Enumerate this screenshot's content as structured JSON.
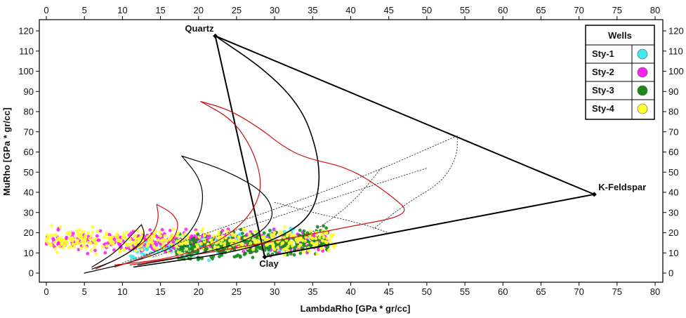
{
  "chart_data": {
    "type": "scatter",
    "title": "",
    "xlabel": "LambdaRho [GPa * gr/cc]",
    "ylabel": "MuRho [GPa * gr/cc]",
    "xlim": [
      0,
      80
    ],
    "ylim": [
      -3,
      125
    ],
    "xticks": [
      0,
      5,
      10,
      15,
      20,
      25,
      30,
      35,
      40,
      45,
      50,
      55,
      60,
      65,
      70,
      75,
      80
    ],
    "yticks": [
      0,
      10,
      20,
      30,
      40,
      50,
      60,
      70,
      80,
      90,
      100,
      110,
      120
    ],
    "top_axis": true,
    "right_axis": true,
    "grid": false,
    "legend": {
      "title": "Wells",
      "placement": "top-right",
      "entries": [
        {
          "name": "Sty-1",
          "color": "#40e8f0"
        },
        {
          "name": "Sty-2",
          "color": "#ff22ee"
        },
        {
          "name": "Sty-3",
          "color": "#1a8a1a"
        },
        {
          "name": "Sty-4",
          "color": "#ffff33"
        }
      ]
    },
    "endmembers": [
      {
        "name": "Quartz",
        "x": 22.2,
        "y": 117.5
      },
      {
        "name": "K-Feldspar",
        "x": 72.0,
        "y": 39.0
      },
      {
        "name": "Clay",
        "x": 28.7,
        "y": 8.0
      }
    ],
    "series": [
      {
        "name": "Sty-1",
        "color": "#40e8f0",
        "cluster": {
          "x_range": [
            11,
            33
          ],
          "y_range": [
            4,
            24
          ]
        }
      },
      {
        "name": "Sty-2",
        "color": "#ff22ee",
        "cluster": {
          "x_range": [
            0,
            37
          ],
          "y_range": [
            5,
            26
          ]
        }
      },
      {
        "name": "Sty-3",
        "color": "#1a8a1a",
        "cluster": {
          "x_range": [
            17,
            37
          ],
          "y_range": [
            2,
            26
          ]
        }
      },
      {
        "name": "Sty-4",
        "color": "#ffff33",
        "cluster": {
          "x_range": [
            0,
            38
          ],
          "y_range": [
            6,
            26
          ]
        }
      }
    ],
    "curves": [
      {
        "style": "solid",
        "color": "#000000",
        "width": 2,
        "points": [
          [
            22.2,
            117.5
          ],
          [
            72,
            39
          ],
          [
            28.7,
            8
          ],
          [
            22.2,
            117.5
          ]
        ]
      },
      {
        "style": "solid",
        "color": "#000000",
        "width": 1.6,
        "points": [
          [
            22.2,
            117.5
          ],
          [
            29,
            100
          ],
          [
            33.5,
            82
          ],
          [
            35.5,
            62
          ],
          [
            36,
            45
          ],
          [
            35,
            30
          ],
          [
            32,
            20
          ],
          [
            26,
            11
          ],
          [
            11.5,
            3
          ]
        ]
      },
      {
        "style": "solid",
        "color": "#cc1111",
        "width": 1.2,
        "points": [
          [
            20.3,
            85
          ],
          [
            24,
            81
          ],
          [
            28,
            72
          ],
          [
            31,
            63
          ],
          [
            34,
            57
          ],
          [
            40,
            52
          ],
          [
            45.5,
            38
          ],
          [
            48,
            29
          ],
          [
            40,
            23
          ],
          [
            26,
            13
          ],
          [
            11,
            4
          ]
        ]
      },
      {
        "style": "solid",
        "color": "#cc1111",
        "width": 1.2,
        "points": [
          [
            20.3,
            85
          ],
          [
            24.5,
            76
          ],
          [
            27,
            62
          ],
          [
            28.2,
            48
          ],
          [
            28,
            37
          ],
          [
            26,
            25
          ],
          [
            22,
            14
          ],
          [
            16,
            7
          ],
          [
            9,
            4
          ]
        ]
      },
      {
        "style": "solid",
        "color": "#000000",
        "width": 1.2,
        "points": [
          [
            17.8,
            58
          ],
          [
            22,
            53
          ],
          [
            25,
            48
          ],
          [
            27.8,
            42
          ],
          [
            29.5,
            35
          ],
          [
            29.8,
            26
          ],
          [
            27,
            17
          ],
          [
            21,
            10
          ],
          [
            12,
            4
          ]
        ]
      },
      {
        "style": "solid",
        "color": "#000000",
        "width": 1.2,
        "points": [
          [
            17.8,
            58
          ],
          [
            20,
            48
          ],
          [
            20.7,
            38
          ],
          [
            20,
            26
          ],
          [
            17.5,
            14
          ],
          [
            12,
            6
          ],
          [
            5,
            0
          ]
        ]
      },
      {
        "style": "solid",
        "color": "#cc1111",
        "width": 1.2,
        "points": [
          [
            14.5,
            34
          ],
          [
            16.5,
            30
          ],
          [
            17.5,
            24
          ],
          [
            16.5,
            15
          ],
          [
            13,
            8
          ],
          [
            9,
            3
          ]
        ]
      },
      {
        "style": "solid",
        "color": "#cc1111",
        "width": 1.2,
        "points": [
          [
            14.5,
            34
          ],
          [
            14.8,
            27
          ],
          [
            14,
            19
          ],
          [
            11,
            10
          ],
          [
            6.5,
            2
          ]
        ]
      },
      {
        "style": "solid",
        "color": "#000000",
        "width": 1.2,
        "points": [
          [
            12.5,
            24
          ],
          [
            13,
            19
          ],
          [
            12,
            13
          ],
          [
            9,
            6
          ],
          [
            6,
            2
          ]
        ]
      },
      {
        "style": "solid",
        "color": "#000000",
        "width": 1.2,
        "points": [
          [
            12.5,
            24
          ],
          [
            11,
            18
          ],
          [
            9,
            10
          ],
          [
            6,
            3
          ]
        ]
      },
      {
        "style": "dotted",
        "color": "#333333",
        "width": 0.9,
        "points": [
          [
            10,
            5
          ],
          [
            25,
            25
          ],
          [
            40,
            45
          ],
          [
            54,
            68
          ]
        ]
      },
      {
        "style": "dotted",
        "color": "#333333",
        "width": 0.9,
        "points": [
          [
            14,
            8
          ],
          [
            28,
            25
          ],
          [
            40,
            40
          ],
          [
            50,
            52
          ]
        ]
      },
      {
        "style": "dotted",
        "color": "#333333",
        "width": 0.9,
        "points": [
          [
            54,
            68
          ],
          [
            54,
            58
          ],
          [
            52,
            45
          ],
          [
            47.5,
            35
          ],
          [
            43,
            22
          ]
        ]
      },
      {
        "style": "dotted",
        "color": "#333333",
        "width": 0.9,
        "points": [
          [
            44,
            52
          ],
          [
            41,
            38
          ],
          [
            38,
            28
          ],
          [
            34,
            18
          ]
        ]
      },
      {
        "style": "dotted",
        "color": "#333333",
        "width": 0.9,
        "points": [
          [
            30,
            35
          ],
          [
            35,
            30
          ],
          [
            41,
            25
          ],
          [
            45,
            20
          ]
        ]
      }
    ]
  }
}
